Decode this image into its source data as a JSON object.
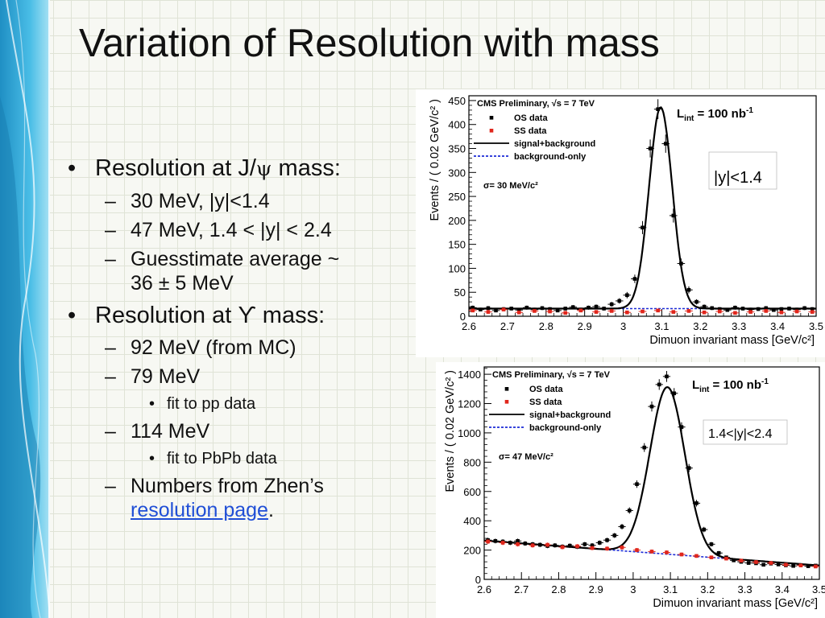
{
  "slide": {
    "title": "Variation of Resolution with mass",
    "bullets": {
      "b1_pre": "Resolution at J/",
      "b1_sym": "ψ",
      "b1_post": " mass:",
      "b1_sub1": "30 MeV, |y|<1.4",
      "b1_sub2": "47 MeV, 1.4 < |y| < 2.4",
      "b1_sub3_line1": "Guesstimate average ~",
      "b1_sub3_line2": "36 ± 5 MeV",
      "b2": "Resolution at ϒ mass:",
      "b2_sub1": "92 MeV (from MC)",
      "b2_sub2": "79 MeV",
      "b2_sub2_note": "fit to pp data",
      "b2_sub3": "114 MeV",
      "b2_sub3_note": "fit to PbPb data",
      "b2_sub4_line1": "Numbers from Zhen’s",
      "b2_sub4_link": "resolution page",
      "b2_sub4_end": "."
    }
  },
  "colors": {
    "os_data": "#000000",
    "ss_data": "#e0261c",
    "signal_background": "#000000",
    "background_only": "#1c2bd6",
    "accent_blue": "#2aa8d8"
  },
  "chart_data": [
    {
      "type": "line",
      "experiment": "CMS Preliminary, ",
      "energy": "√s = 7 TeV",
      "lumi_label": "L",
      "lumi_sub": "int",
      "lumi_value": " = 100 nb",
      "lumi_sup": "-1",
      "rapidity_label": "|y|<1.4",
      "sigma_label": "σ= 30 MeV/c²",
      "xlabel": "Dimuon invariant mass [GeV/c²]",
      "ylabel": "Events / ( 0.02 GeV/c² )",
      "xlim": [
        2.6,
        3.5
      ],
      "ylim": [
        0,
        460
      ],
      "xticks": [
        "2.6",
        "2.7",
        "2.8",
        "2.9",
        "3",
        "3.1",
        "3.2",
        "3.3",
        "3.4",
        "3.5"
      ],
      "yticks": [
        "0",
        "50",
        "100",
        "150",
        "200",
        "250",
        "300",
        "350",
        "400",
        "450"
      ],
      "legend": [
        "OS data",
        "SS data",
        "signal+background",
        "background-only"
      ],
      "fit": {
        "peak_mass": 3.097,
        "sigma": 0.03,
        "peak_height": 420,
        "background": 16
      },
      "series": [
        {
          "name": "OS data",
          "x": [
            2.61,
            2.63,
            2.65,
            2.67,
            2.69,
            2.71,
            2.73,
            2.75,
            2.77,
            2.79,
            2.81,
            2.83,
            2.85,
            2.87,
            2.89,
            2.91,
            2.93,
            2.95,
            2.97,
            2.99,
            3.01,
            3.03,
            3.05,
            3.07,
            3.09,
            3.11,
            3.13,
            3.15,
            3.17,
            3.19,
            3.21,
            3.23,
            3.25,
            3.27,
            3.29,
            3.31,
            3.33,
            3.35,
            3.37,
            3.39,
            3.41,
            3.43,
            3.45,
            3.47,
            3.49
          ],
          "y": [
            18,
            14,
            17,
            12,
            15,
            16,
            13,
            18,
            14,
            17,
            15,
            12,
            16,
            19,
            14,
            18,
            20,
            16,
            25,
            32,
            44,
            78,
            185,
            350,
            432,
            360,
            210,
            110,
            55,
            30,
            20,
            17,
            15,
            13,
            18,
            16,
            14,
            15,
            17,
            13,
            15,
            16,
            14,
            17,
            15
          ]
        },
        {
          "name": "SS data",
          "x": [
            2.61,
            2.65,
            2.69,
            2.73,
            2.77,
            2.81,
            2.85,
            2.89,
            2.93,
            2.97,
            3.01,
            3.05,
            3.09,
            3.13,
            3.17,
            3.21,
            3.25,
            3.29,
            3.33,
            3.37,
            3.41,
            3.45,
            3.49
          ],
          "y": [
            12,
            9,
            14,
            8,
            11,
            10,
            7,
            12,
            9,
            11,
            8,
            10,
            12,
            9,
            11,
            8,
            10,
            7,
            9,
            11,
            8,
            10,
            9
          ]
        }
      ]
    },
    {
      "type": "line",
      "experiment": "CMS Preliminary, ",
      "energy": "√s = 7 TeV",
      "lumi_label": "L",
      "lumi_sub": "int",
      "lumi_value": " = 100 nb",
      "lumi_sup": "-1",
      "rapidity_label": "1.4<|y|<2.4",
      "sigma_label": "σ= 47 MeV/c²",
      "xlabel": "Dimuon invariant mass [GeV/c²]",
      "ylabel": "Events / ( 0.02 GeV/c² )",
      "xlim": [
        2.6,
        3.5
      ],
      "ylim": [
        0,
        1450
      ],
      "xticks": [
        "2.6",
        "2.7",
        "2.8",
        "2.9",
        "3",
        "3.1",
        "3.2",
        "3.3",
        "3.4",
        "3.5"
      ],
      "yticks": [
        "0",
        "200",
        "400",
        "600",
        "800",
        "1000",
        "1200",
        "1400"
      ],
      "legend": [
        "OS data",
        "SS data",
        "signal+background",
        "background-only"
      ],
      "fit": {
        "peak_mass": 3.092,
        "sigma": 0.047,
        "peak_height": 1140,
        "bg_start": 265,
        "bg_end": 95
      },
      "series": [
        {
          "name": "OS data",
          "x": [
            2.61,
            2.63,
            2.65,
            2.67,
            2.69,
            2.71,
            2.73,
            2.75,
            2.77,
            2.79,
            2.81,
            2.83,
            2.85,
            2.87,
            2.89,
            2.91,
            2.93,
            2.95,
            2.97,
            2.99,
            3.01,
            3.03,
            3.05,
            3.07,
            3.09,
            3.11,
            3.13,
            3.15,
            3.17,
            3.19,
            3.21,
            3.23,
            3.25,
            3.27,
            3.29,
            3.31,
            3.33,
            3.35,
            3.37,
            3.39,
            3.41,
            3.43,
            3.45,
            3.47,
            3.49
          ],
          "y": [
            268,
            262,
            258,
            250,
            262,
            245,
            240,
            236,
            228,
            232,
            224,
            230,
            222,
            240,
            232,
            250,
            268,
            300,
            360,
            470,
            650,
            900,
            1180,
            1330,
            1385,
            1270,
            1040,
            760,
            520,
            340,
            240,
            180,
            150,
            130,
            120,
            112,
            110,
            100,
            108,
            102,
            96,
            92,
            98,
            90,
            94
          ]
        },
        {
          "name": "SS data",
          "x": [
            2.61,
            2.65,
            2.69,
            2.73,
            2.77,
            2.81,
            2.85,
            2.89,
            2.93,
            2.97,
            3.01,
            3.05,
            3.09,
            3.13,
            3.17,
            3.21,
            3.25,
            3.29,
            3.33,
            3.37,
            3.41,
            3.45,
            3.49
          ],
          "y": [
            258,
            250,
            240,
            232,
            236,
            220,
            226,
            214,
            210,
            218,
            200,
            190,
            184,
            170,
            160,
            150,
            142,
            128,
            118,
            112,
            100,
            95,
            88
          ]
        }
      ]
    }
  ]
}
